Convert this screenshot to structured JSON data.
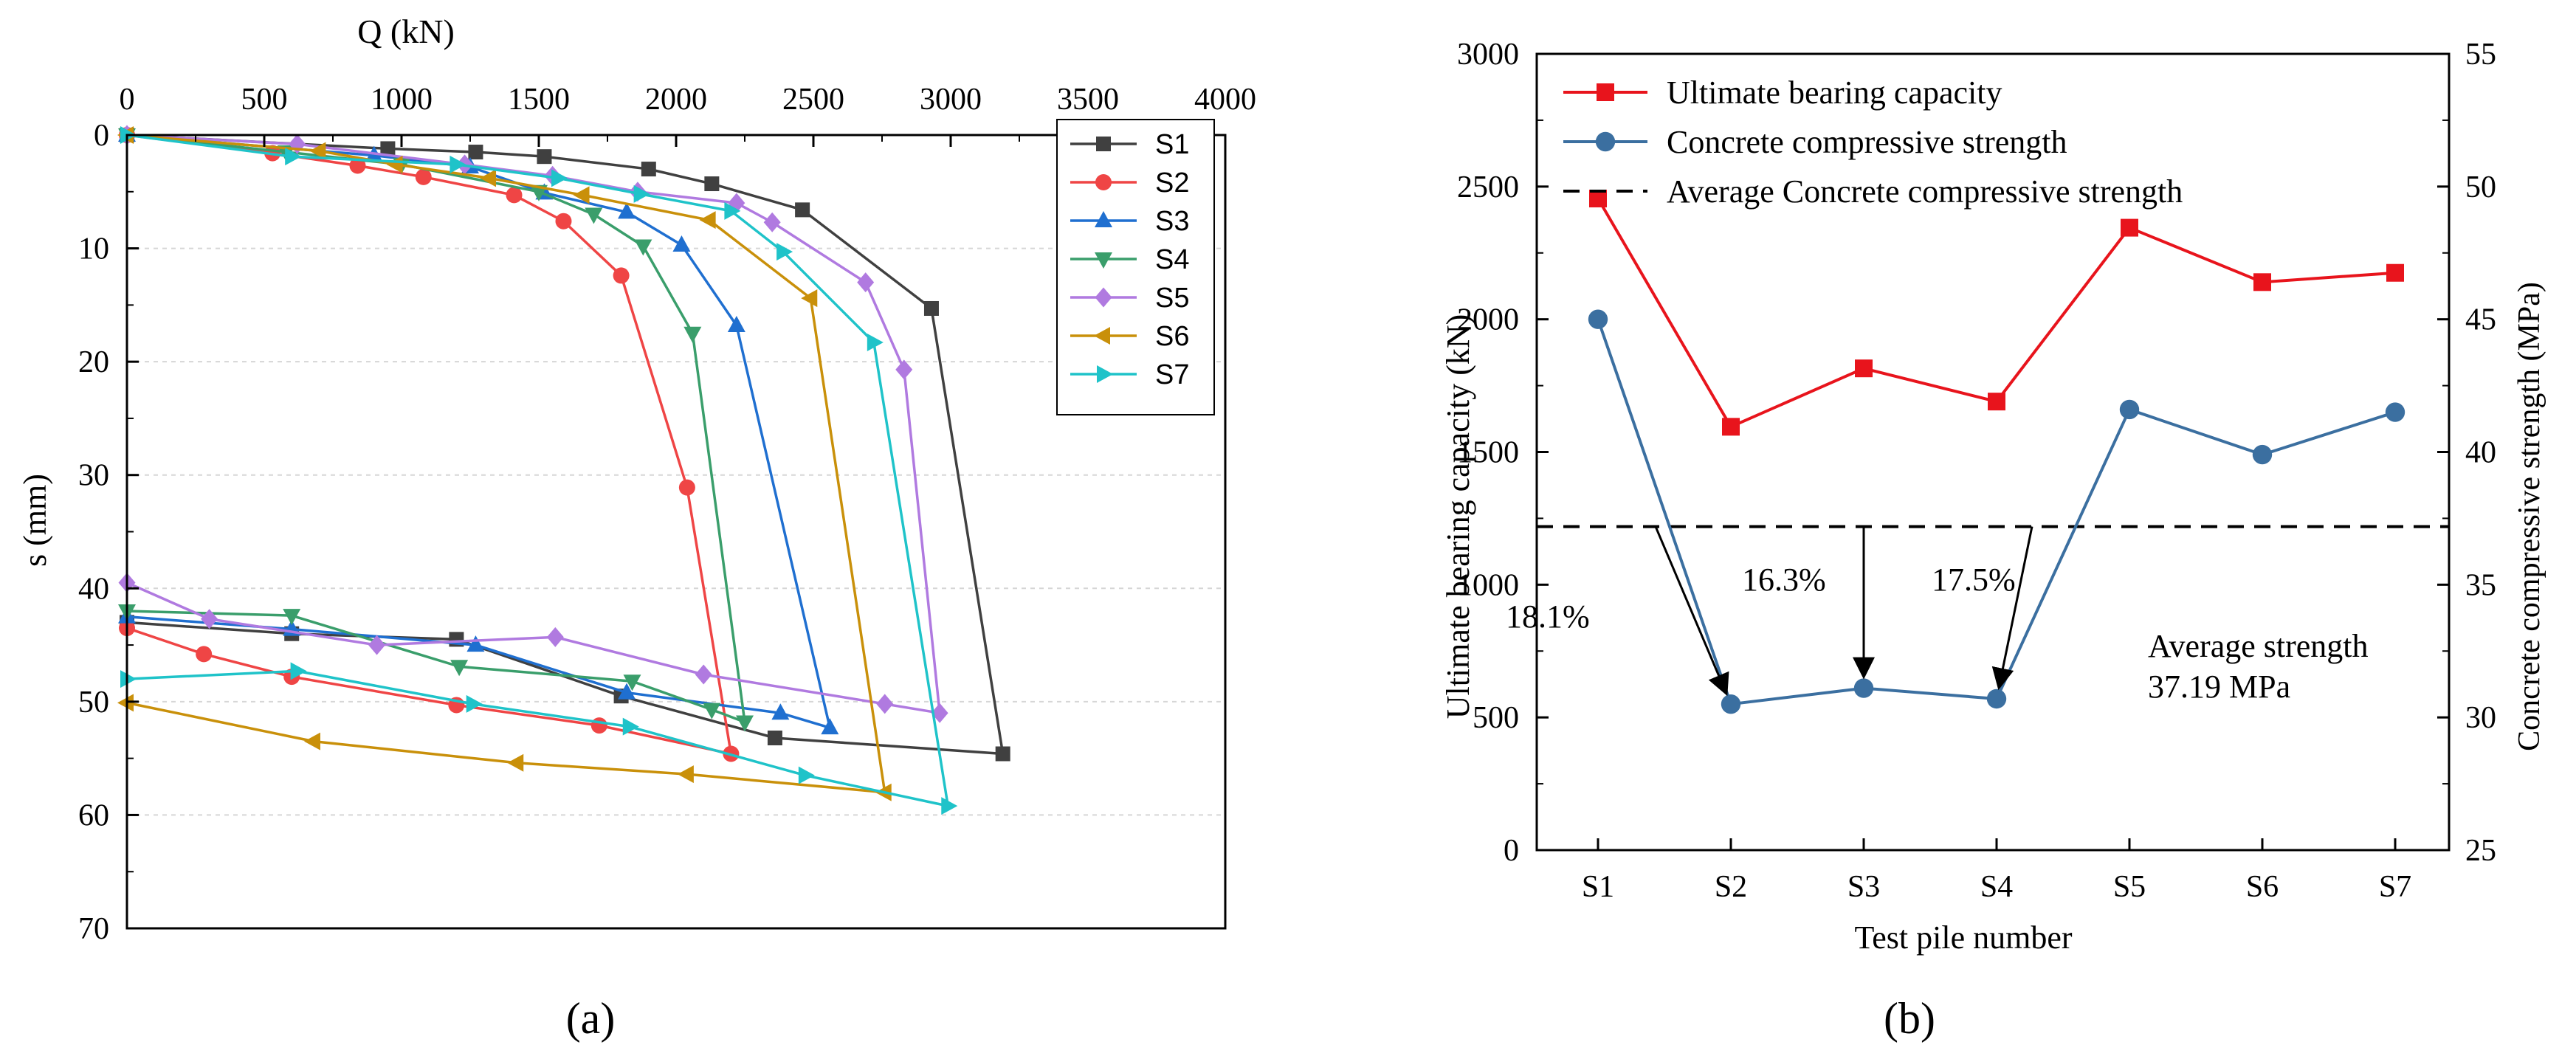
{
  "chart_data": [
    {
      "type": "line",
      "panel_label": "(a)",
      "xlabel": "Q (kN)",
      "ylabel": "s (mm)",
      "xlim": [
        0,
        4000
      ],
      "ylim": [
        0,
        70
      ],
      "y_inverted": true,
      "x_axis_position": "top",
      "xticks": [
        "0",
        "500",
        "1000",
        "1500",
        "2000",
        "2500",
        "3000",
        "3500",
        "4000"
      ],
      "yticks": [
        "0",
        "10",
        "20",
        "30",
        "40",
        "50",
        "60",
        "70"
      ],
      "legend_position": "top-right",
      "series": [
        {
          "name": "S1",
          "color": "#404040",
          "marker": "square",
          "x": [
            0,
            950,
            1270,
            1520,
            1900,
            2130,
            2460,
            2930,
            3190,
            2360,
            1800,
            1200,
            600,
            0
          ],
          "y": [
            0,
            1.2,
            1.5,
            1.9,
            3.0,
            4.3,
            6.6,
            15.3,
            54.6,
            53.2,
            49.5,
            44.5,
            44.0,
            43.0
          ]
        },
        {
          "name": "S2",
          "color": "#EF4545",
          "marker": "circle",
          "x": [
            0,
            530,
            840,
            1080,
            1410,
            1590,
            1800,
            2040,
            2200,
            1720,
            1200,
            600,
            280,
            0
          ],
          "y": [
            0,
            1.6,
            2.7,
            3.7,
            5.3,
            7.6,
            12.4,
            31.1,
            54.6,
            52.1,
            50.3,
            47.8,
            45.8,
            43.5
          ]
        },
        {
          "name": "S3",
          "color": "#1F6FD0",
          "marker": "triangle-up",
          "x": [
            0,
            900,
            1250,
            1520,
            1820,
            2020,
            2220,
            2560,
            2380,
            1820,
            1270,
            600,
            0
          ],
          "y": [
            0,
            1.8,
            2.8,
            5.1,
            6.8,
            9.7,
            16.8,
            52.3,
            51.0,
            49.2,
            45.0,
            43.6,
            42.5
          ]
        },
        {
          "name": "S4",
          "color": "#3A9E6B",
          "marker": "triangle-down",
          "x": [
            0,
            580,
            1000,
            1500,
            1700,
            1880,
            2060,
            2250,
            2130,
            1840,
            1210,
            600,
            0
          ],
          "y": [
            0,
            1.5,
            2.6,
            5.0,
            7.0,
            9.8,
            17.5,
            51.8,
            50.7,
            48.2,
            46.9,
            42.4,
            42.0
          ]
        },
        {
          "name": "S5",
          "color": "#B07AE0",
          "marker": "diamond",
          "x": [
            0,
            620,
            1230,
            1550,
            1860,
            2220,
            2350,
            2690,
            2830,
            2960,
            2760,
            2100,
            1560,
            910,
            300,
            0
          ],
          "y": [
            0,
            0.8,
            2.6,
            3.6,
            5.0,
            6.0,
            7.7,
            13.0,
            20.7,
            51.0,
            50.2,
            47.6,
            44.3,
            45.0,
            42.7,
            39.5
          ]
        },
        {
          "name": "S6",
          "color": "#C9900A",
          "marker": "triangle-left",
          "x": [
            0,
            700,
            980,
            1320,
            1660,
            2120,
            2490,
            2760,
            2040,
            1420,
            680,
            0
          ],
          "y": [
            0,
            1.4,
            2.6,
            3.8,
            5.3,
            7.5,
            14.4,
            58.0,
            56.4,
            55.4,
            53.5,
            50.1
          ]
        },
        {
          "name": "S7",
          "color": "#1FC3C9",
          "marker": "triangle-right",
          "x": [
            0,
            600,
            1200,
            1570,
            1870,
            2200,
            2390,
            2720,
            2990,
            2470,
            1830,
            1260,
            620,
            0
          ],
          "y": [
            0,
            1.9,
            2.6,
            3.8,
            5.2,
            6.7,
            10.3,
            18.3,
            59.2,
            56.5,
            52.2,
            50.2,
            47.3,
            48.0
          ]
        }
      ]
    },
    {
      "type": "line",
      "panel_label": "(b)",
      "xlabel": "Test pile number",
      "ylabel": "Ultimate bearing capacity  (kN)",
      "ylabel_right": "Concrete compressive strength  (MPa)",
      "categories": [
        "S1",
        "S2",
        "S3",
        "S4",
        "S5",
        "S6",
        "S7"
      ],
      "ylim": [
        0,
        3000
      ],
      "ylim_right": [
        25,
        55
      ],
      "yticks": [
        "0",
        "500",
        "1000",
        "1500",
        "2000",
        "2500",
        "3000"
      ],
      "yticks_right": [
        "25",
        "30",
        "35",
        "40",
        "45",
        "50",
        "55"
      ],
      "legend_position": "top",
      "series": [
        {
          "name": "Ultimate bearing capacity",
          "axis": "left",
          "color": "#E8141C",
          "marker": "square",
          "values": [
            2455,
            1595,
            1815,
            1690,
            2345,
            2140,
            2175
          ]
        },
        {
          "name": "Concrete compressive strength",
          "axis": "right",
          "color": "#3B6FA0",
          "marker": "circle",
          "values": [
            45.0,
            30.5,
            31.1,
            30.7,
            41.6,
            39.9,
            41.5
          ]
        }
      ],
      "reference_line": {
        "name": "Average  Concrete compressive strength",
        "axis": "right",
        "value": 37.19,
        "style": "dashed",
        "color": "#000000"
      },
      "annotations": [
        {
          "text": "18.1%",
          "from": "S1",
          "to": "S2"
        },
        {
          "text": "16.3%",
          "from": "S3",
          "to": "S3"
        },
        {
          "text": "17.5%",
          "from": "S4",
          "to": "S4"
        }
      ],
      "average_label_1": "Average strength",
      "average_label_2": "37.19 MPa"
    }
  ]
}
